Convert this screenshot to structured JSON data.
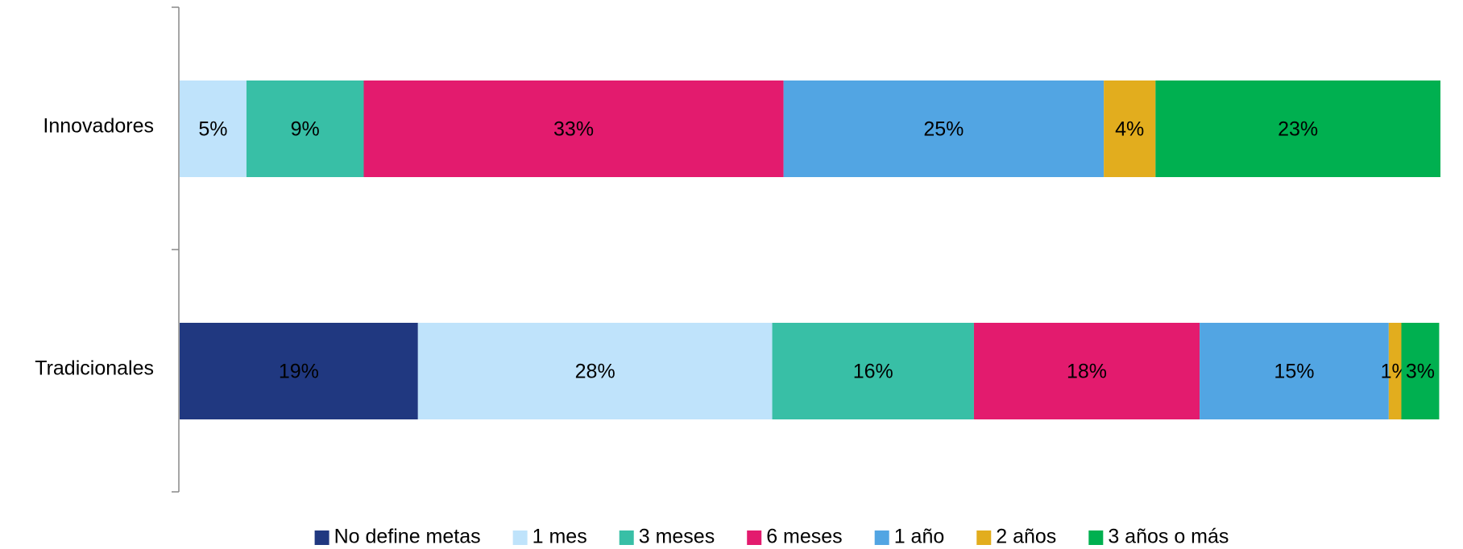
{
  "chart_data": {
    "type": "stacked-bar-horizontal",
    "categories": [
      "Innovadores",
      "Tradicionales"
    ],
    "xlim": [
      0,
      100
    ],
    "legend": "bottom",
    "series": [
      {
        "name": "No define metas",
        "color": "#203880",
        "values": [
          null,
          18.9
        ],
        "value_labels": [
          null,
          "19%"
        ]
      },
      {
        "name": "1 mes",
        "color": "#bfe3fb",
        "values": [
          5.3,
          28.1
        ],
        "value_labels": [
          "5%",
          "28%"
        ]
      },
      {
        "name": "3 meses",
        "color": "#38bfa6",
        "values": [
          9.3,
          16.0
        ],
        "value_labels": [
          "9%",
          "16%"
        ]
      },
      {
        "name": "6 meses",
        "color": "#e31b6e",
        "values": [
          33.3,
          17.9
        ],
        "value_labels": [
          "33%",
          "18%"
        ]
      },
      {
        "name": "1 año",
        "color": "#52a5e3",
        "values": [
          25.4,
          15.0
        ],
        "value_labels": [
          "25%",
          "15%"
        ]
      },
      {
        "name": "2 años",
        "color": "#e2ad1e",
        "values": [
          4.1,
          1.0
        ],
        "value_labels": [
          "4%",
          "1%"
        ]
      },
      {
        "name": "3 años o más",
        "color": "#00b050",
        "values": [
          22.6,
          3.0
        ],
        "value_labels": [
          "23%",
          "3%"
        ]
      }
    ]
  }
}
